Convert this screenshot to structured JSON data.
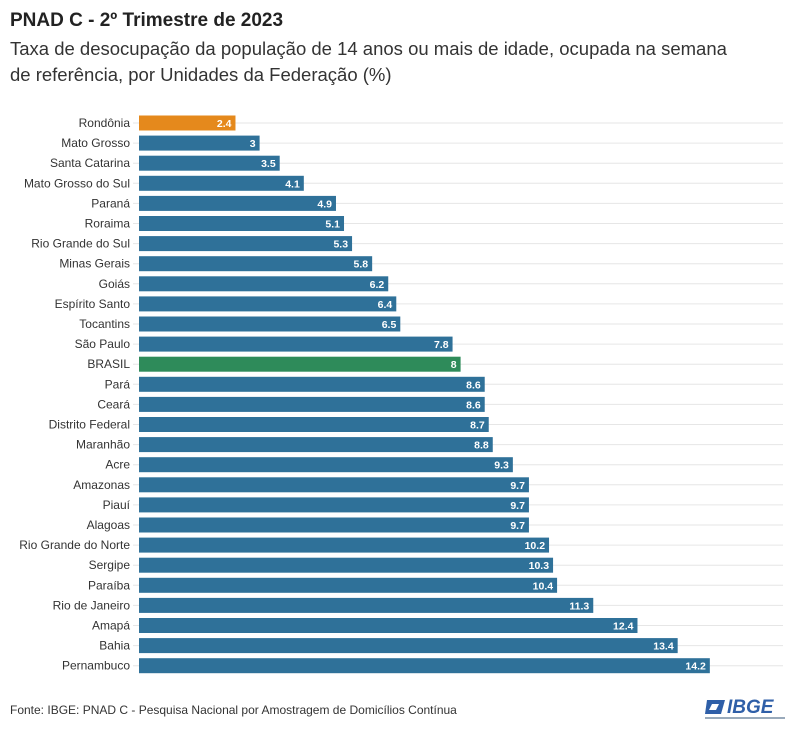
{
  "title": "PNAD C - 2º Trimestre de 2023",
  "subtitle": "Taxa de desocupação da população de 14 anos ou mais de idade, ocupada na semana de referência, por Unidades da Federação (%)",
  "source": "Fonte: IBGE: PNAD C - Pesquisa Nacional por Amostragem de Domicílios Contínua",
  "logo_text": "IBGE",
  "chart_data": {
    "type": "bar",
    "orientation": "horizontal",
    "categories": [
      "Rondônia",
      "Mato Grosso",
      "Santa Catarina",
      "Mato Grosso do Sul",
      "Paraná",
      "Roraima",
      "Rio Grande do Sul",
      "Minas Gerais",
      "Goiás",
      "Espírito Santo",
      "Tocantins",
      "São Paulo",
      "BRASIL",
      "Pará",
      "Ceará",
      "Distrito Federal",
      "Maranhão",
      "Acre",
      "Amazonas",
      "Piauí",
      "Alagoas",
      "Rio Grande do Norte",
      "Sergipe",
      "Paraíba",
      "Rio de Janeiro",
      "Amapá",
      "Bahia",
      "Pernambuco"
    ],
    "values": [
      2.4,
      3,
      3.5,
      4.1,
      4.9,
      5.1,
      5.3,
      5.8,
      6.2,
      6.4,
      6.5,
      7.8,
      8,
      8.6,
      8.6,
      8.7,
      8.8,
      9.3,
      9.7,
      9.7,
      9.7,
      10.2,
      10.3,
      10.4,
      11.3,
      12.4,
      13.4,
      14.2
    ],
    "colors": {
      "default": "#2f7199",
      "Rondônia": "#e5891c",
      "BRASIL": "#2e8b5a"
    },
    "grid": "horizontal",
    "data_labels": true
  }
}
